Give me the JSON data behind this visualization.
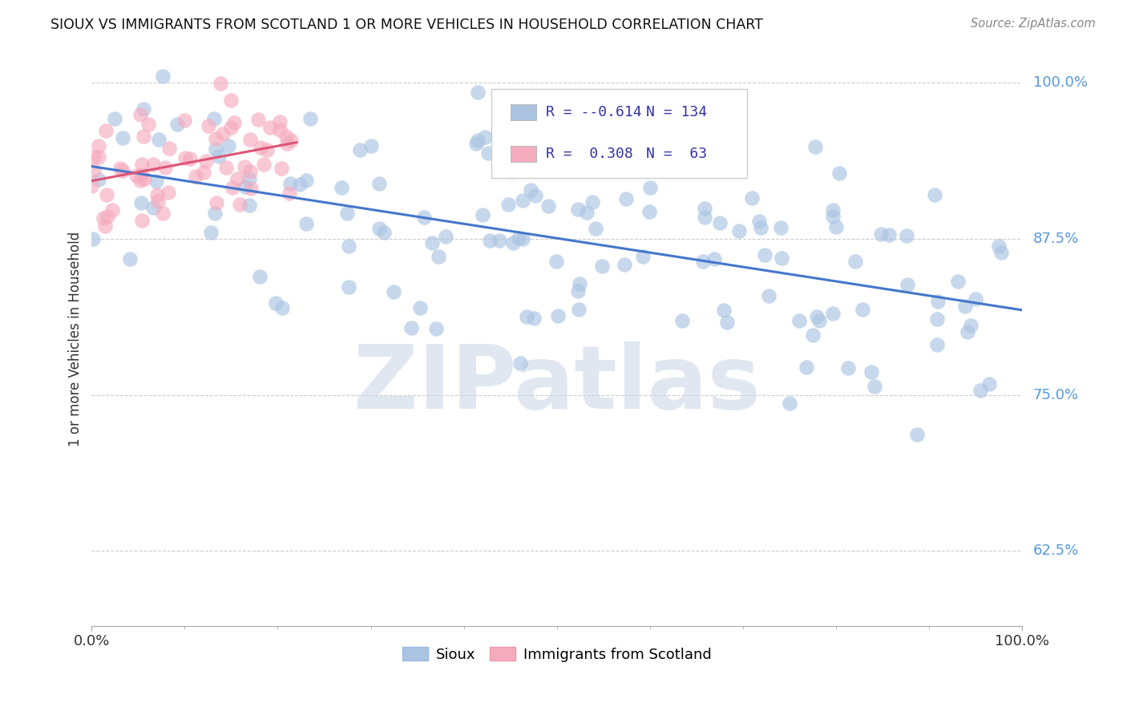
{
  "title": "SIOUX VS IMMIGRANTS FROM SCOTLAND 1 OR MORE VEHICLES IN HOUSEHOLD CORRELATION CHART",
  "source": "Source: ZipAtlas.com",
  "ylabel": "1 or more Vehicles in Household",
  "ytick_values": [
    0.625,
    0.75,
    0.875,
    1.0
  ],
  "ytick_labels": [
    "62.5%",
    "75.0%",
    "87.5%",
    "100.0%"
  ],
  "xtick_left": "0.0%",
  "xtick_right": "100.0%",
  "blue_color": "#aac4e2",
  "pink_color": "#f5abbe",
  "blue_line_color": "#4477cc",
  "pink_line_color": "#dd5577",
  "watermark_color": "#ccd8e8",
  "watermark": "ZIPatlas",
  "legend_r_blue": "-0.614",
  "legend_n_blue": "134",
  "legend_r_pink": "0.308",
  "legend_n_pink": "63",
  "text_color": "#3333aa",
  "ylim_min": 0.565,
  "ylim_max": 1.025,
  "xlim_min": 0.0,
  "xlim_max": 1.0
}
